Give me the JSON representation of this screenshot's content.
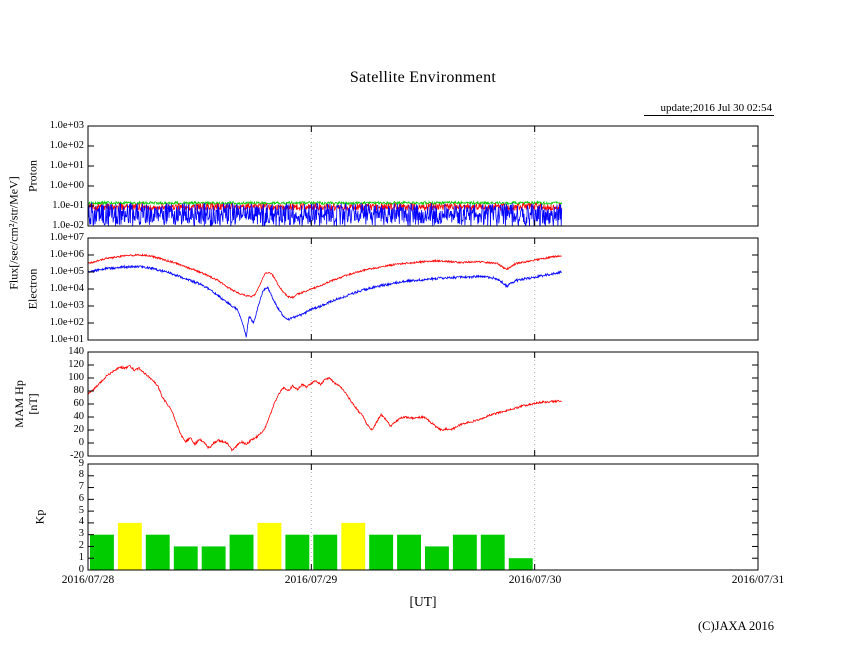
{
  "title": "Satellite Environment",
  "update_label": "update;2016 Jul 30 02:54",
  "xlabel": "[UT]",
  "copyright": "(C)JAXA 2016",
  "flux_axis_label": "Flux[/sec/cm²/str/MeV]",
  "chart_data": {
    "type": "multi-panel-timeseries",
    "x": {
      "ticks": [
        "2016/07/28",
        "2016/07/29",
        "2016/07/30",
        "2016/07/31"
      ],
      "range_hours": [
        0,
        72
      ],
      "gridline_hours": [
        24,
        48
      ],
      "data_end_hour": 50.9
    },
    "panels": [
      {
        "name": "proton",
        "ylabel": "Proton",
        "scale": "log",
        "range": [
          -2,
          3
        ],
        "yticks": [
          "1.0e+03",
          "1.0e+02",
          "1.0e+01",
          "1.0e+00",
          "1.0e-01",
          "1.0e-02"
        ],
        "series": [
          {
            "name": "proton-green",
            "color": "#00cc00",
            "style": "noise",
            "base": -0.85,
            "noise": 0.07
          },
          {
            "name": "proton-red",
            "color": "#ff0000",
            "style": "noise",
            "base": -1.05,
            "noise": 0.18
          },
          {
            "name": "proton-blue",
            "color": "#0000ff",
            "style": "noise",
            "base": -1.4,
            "noise": 0.55,
            "spike_prob": 0.12,
            "spike_depth": 0.8
          }
        ]
      },
      {
        "name": "electron",
        "ylabel": "Electron",
        "scale": "log",
        "range": [
          1,
          7
        ],
        "yticks": [
          "1.0e+07",
          "1.0e+06",
          "1.0e+05",
          "1.0e+04",
          "1.0e+03",
          "1.0e+02",
          "1.0e+01"
        ],
        "series": [
          {
            "name": "electron-red",
            "color": "#ff0000",
            "style": "keypoints",
            "noise": 0.05,
            "keypoints": [
              [
                0,
                5.5
              ],
              [
                2,
                5.8
              ],
              [
                4,
                5.95
              ],
              [
                5,
                6.0
              ],
              [
                6,
                6.0
              ],
              [
                7,
                5.9
              ],
              [
                8,
                5.75
              ],
              [
                9,
                5.6
              ],
              [
                10,
                5.4
              ],
              [
                11,
                5.2
              ],
              [
                12,
                5.0
              ],
              [
                13,
                4.75
              ],
              [
                14,
                4.5
              ],
              [
                15,
                4.1
              ],
              [
                16,
                3.8
              ],
              [
                17,
                3.6
              ],
              [
                17.5,
                3.55
              ],
              [
                18,
                3.7
              ],
              [
                18.5,
                4.3
              ],
              [
                19,
                4.9
              ],
              [
                19.5,
                5.0
              ],
              [
                20,
                4.7
              ],
              [
                20.5,
                4.2
              ],
              [
                21,
                3.8
              ],
              [
                21.5,
                3.55
              ],
              [
                22,
                3.5
              ],
              [
                22.5,
                3.7
              ],
              [
                23,
                3.8
              ],
              [
                24,
                4.0
              ],
              [
                25,
                4.2
              ],
              [
                26,
                4.45
              ],
              [
                27,
                4.65
              ],
              [
                28,
                4.85
              ],
              [
                29,
                5.0
              ],
              [
                30,
                5.15
              ],
              [
                31,
                5.25
              ],
              [
                32,
                5.35
              ],
              [
                33,
                5.45
              ],
              [
                34,
                5.5
              ],
              [
                35,
                5.55
              ],
              [
                36,
                5.6
              ],
              [
                37,
                5.65
              ],
              [
                38,
                5.65
              ],
              [
                39,
                5.6
              ],
              [
                40,
                5.55
              ],
              [
                41,
                5.6
              ],
              [
                42,
                5.6
              ],
              [
                43,
                5.55
              ],
              [
                44,
                5.5
              ],
              [
                44.5,
                5.3
              ],
              [
                45,
                5.15
              ],
              [
                45.5,
                5.35
              ],
              [
                46,
                5.5
              ],
              [
                47,
                5.6
              ],
              [
                48,
                5.7
              ],
              [
                49,
                5.8
              ],
              [
                50,
                5.9
              ],
              [
                50.9,
                5.95
              ]
            ]
          },
          {
            "name": "electron-blue",
            "color": "#0000ff",
            "style": "keypoints",
            "noise": 0.07,
            "keypoints": [
              [
                0,
                5.0
              ],
              [
                2,
                5.2
              ],
              [
                4,
                5.3
              ],
              [
                6,
                5.3
              ],
              [
                7,
                5.2
              ],
              [
                8,
                5.05
              ],
              [
                9,
                4.9
              ],
              [
                10,
                4.7
              ],
              [
                11,
                4.5
              ],
              [
                12,
                4.3
              ],
              [
                13,
                4.0
              ],
              [
                14,
                3.6
              ],
              [
                15,
                3.2
              ],
              [
                16,
                2.8
              ],
              [
                16.5,
                2.2
              ],
              [
                17,
                1.2
              ],
              [
                17.3,
                2.4
              ],
              [
                17.8,
                2.0
              ],
              [
                18.3,
                3.0
              ],
              [
                18.8,
                3.9
              ],
              [
                19.3,
                4.1
              ],
              [
                19.8,
                3.5
              ],
              [
                20.5,
                2.8
              ],
              [
                21,
                2.4
              ],
              [
                21.5,
                2.2
              ],
              [
                22,
                2.3
              ],
              [
                23,
                2.5
              ],
              [
                24,
                2.8
              ],
              [
                25,
                3.0
              ],
              [
                26,
                3.25
              ],
              [
                27,
                3.45
              ],
              [
                28,
                3.65
              ],
              [
                29,
                3.85
              ],
              [
                30,
                4.0
              ],
              [
                31,
                4.15
              ],
              [
                32,
                4.25
              ],
              [
                33,
                4.35
              ],
              [
                34,
                4.45
              ],
              [
                35,
                4.5
              ],
              [
                36,
                4.55
              ],
              [
                37,
                4.6
              ],
              [
                38,
                4.65
              ],
              [
                39,
                4.65
              ],
              [
                40,
                4.7
              ],
              [
                41,
                4.7
              ],
              [
                42,
                4.75
              ],
              [
                43,
                4.7
              ],
              [
                44,
                4.6
              ],
              [
                44.5,
                4.4
              ],
              [
                45,
                4.15
              ],
              [
                45.5,
                4.35
              ],
              [
                46,
                4.5
              ],
              [
                47,
                4.6
              ],
              [
                48,
                4.7
              ],
              [
                49,
                4.8
              ],
              [
                50,
                4.9
              ],
              [
                50.9,
                5.0
              ]
            ]
          }
        ]
      },
      {
        "name": "hp",
        "ylabel": "MAM Hp",
        "ylabel2": "[nT]",
        "scale": "linear",
        "range": [
          -20,
          140
        ],
        "yticks": [
          "140",
          "120",
          "100",
          "80",
          "60",
          "40",
          "20",
          "0",
          "-20"
        ],
        "series": [
          {
            "name": "hp-red",
            "color": "#ff0000",
            "style": "keypoints",
            "noise": 1.5,
            "keypoints": [
              [
                0,
                75
              ],
              [
                1,
                88
              ],
              [
                2,
                103
              ],
              [
                3,
                113
              ],
              [
                3.5,
                117
              ],
              [
                4,
                115
              ],
              [
                4.5,
                118
              ],
              [
                5,
                112
              ],
              [
                5.5,
                115
              ],
              [
                6,
                108
              ],
              [
                6.5,
                102
              ],
              [
                7,
                96
              ],
              [
                7.5,
                88
              ],
              [
                8,
                70
              ],
              [
                8.5,
                60
              ],
              [
                9,
                50
              ],
              [
                9.5,
                30
              ],
              [
                10,
                12
              ],
              [
                10.5,
                2
              ],
              [
                11,
                8
              ],
              [
                11.5,
                -2
              ],
              [
                12,
                6
              ],
              [
                12.5,
                0
              ],
              [
                13,
                -8
              ],
              [
                13.5,
                0
              ],
              [
                14,
                4
              ],
              [
                15,
                0
              ],
              [
                15.5,
                -12
              ],
              [
                16,
                -4
              ],
              [
                16.5,
                2
              ],
              [
                17,
                -2
              ],
              [
                17.5,
                4
              ],
              [
                18,
                8
              ],
              [
                18.5,
                14
              ],
              [
                19,
                22
              ],
              [
                19.5,
                40
              ],
              [
                20,
                60
              ],
              [
                20.5,
                75
              ],
              [
                21,
                85
              ],
              [
                21.5,
                80
              ],
              [
                22,
                88
              ],
              [
                22.5,
                82
              ],
              [
                23,
                90
              ],
              [
                23.5,
                86
              ],
              [
                24,
                92
              ],
              [
                24.5,
                96
              ],
              [
                25,
                90
              ],
              [
                25.5,
                98
              ],
              [
                26,
                100
              ],
              [
                26.5,
                92
              ],
              [
                27,
                88
              ],
              [
                27.5,
                80
              ],
              [
                28,
                70
              ],
              [
                28.5,
                60
              ],
              [
                29,
                50
              ],
              [
                29.5,
                42
              ],
              [
                30,
                28
              ],
              [
                30.5,
                20
              ],
              [
                31,
                32
              ],
              [
                31.5,
                44
              ],
              [
                32,
                36
              ],
              [
                32.5,
                26
              ],
              [
                33,
                32
              ],
              [
                33.5,
                38
              ],
              [
                34,
                40
              ],
              [
                35,
                38
              ],
              [
                36,
                40
              ],
              [
                36.5,
                36
              ],
              [
                37,
                30
              ],
              [
                37.5,
                24
              ],
              [
                38,
                20
              ],
              [
                38.5,
                22
              ],
              [
                39,
                20
              ],
              [
                39.5,
                24
              ],
              [
                40,
                28
              ],
              [
                41,
                32
              ],
              [
                42,
                36
              ],
              [
                43,
                42
              ],
              [
                44,
                46
              ],
              [
                45,
                50
              ],
              [
                46,
                54
              ],
              [
                47,
                58
              ],
              [
                48,
                61
              ],
              [
                49,
                63
              ],
              [
                50,
                64
              ],
              [
                50.9,
                65
              ]
            ]
          }
        ]
      },
      {
        "name": "kp",
        "ylabel": "Kp",
        "scale": "linear",
        "range": [
          0,
          9
        ],
        "yticks": [
          "9",
          "8",
          "7",
          "6",
          "5",
          "4",
          "3",
          "2",
          "1",
          "0"
        ],
        "bars": {
          "start_hour": 0,
          "step_hours": 3,
          "values": [
            3,
            4,
            3,
            2,
            2,
            3,
            4,
            3,
            3,
            4,
            3,
            3,
            2,
            3,
            3,
            1
          ],
          "colors": [
            "#00cc00",
            "#ffff00",
            "#00cc00",
            "#00cc00",
            "#00cc00",
            "#00cc00",
            "#ffff00",
            "#00cc00",
            "#00cc00",
            "#ffff00",
            "#00cc00",
            "#00cc00",
            "#00cc00",
            "#00cc00",
            "#00cc00",
            "#00cc00"
          ]
        }
      }
    ]
  }
}
